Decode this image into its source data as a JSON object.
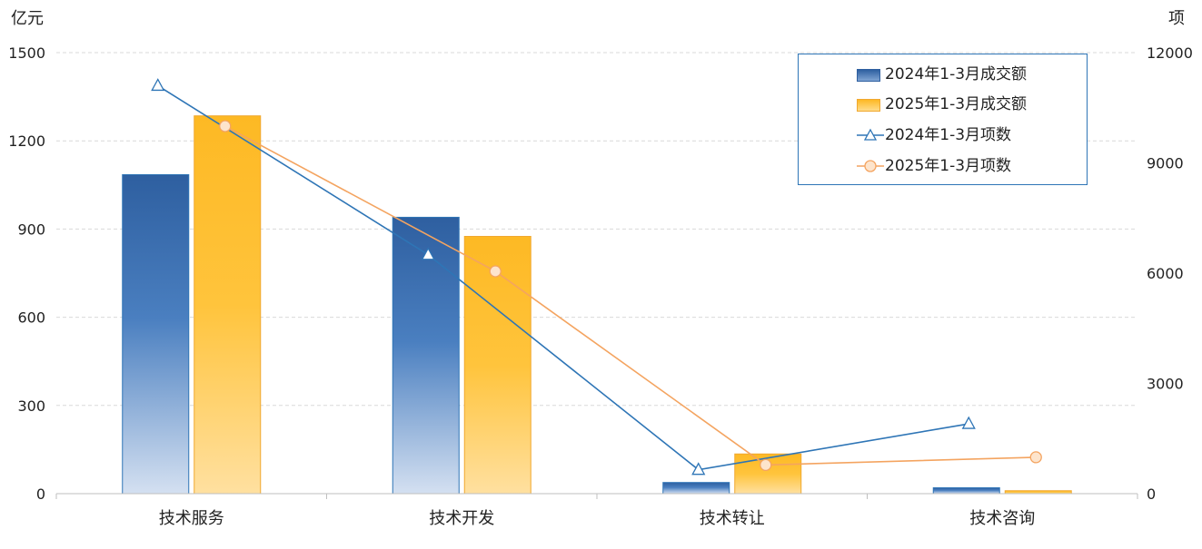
{
  "chart_data": {
    "type": "bar",
    "categories": [
      "技术服务",
      "技术开发",
      "技术转让",
      "技术咨询"
    ],
    "left_axis": {
      "unit": "亿元",
      "ylim": [
        0,
        1500
      ],
      "ticks": [
        "0",
        "300",
        "600",
        "900",
        "1200",
        "1500"
      ]
    },
    "right_axis": {
      "unit": "项",
      "ylim": [
        0,
        12000
      ],
      "ticks": [
        "0",
        "3000",
        "6000",
        "9000",
        "12000"
      ]
    },
    "grid": true,
    "legend_position": "top-right",
    "series": [
      {
        "name": "2024年1-3月成交额",
        "type": "bar",
        "axis": "left",
        "values": [
          1085,
          940,
          38,
          20
        ],
        "color": "#2e5fa0"
      },
      {
        "name": "2025年1-3月成交额",
        "type": "bar",
        "axis": "left",
        "values": [
          1285,
          875,
          135,
          10
        ],
        "color": "#fdb924"
      },
      {
        "name": "2024年1-3月项数",
        "type": "line",
        "marker": "triangle",
        "axis": "right",
        "values": [
          11100,
          6500,
          650,
          1900
        ],
        "color": "#2e75b6"
      },
      {
        "name": "2025年1-3月项数",
        "type": "line",
        "marker": "circle",
        "axis": "right",
        "values": [
          10000,
          6050,
          780,
          990
        ],
        "color": "#f4a460"
      }
    ]
  }
}
